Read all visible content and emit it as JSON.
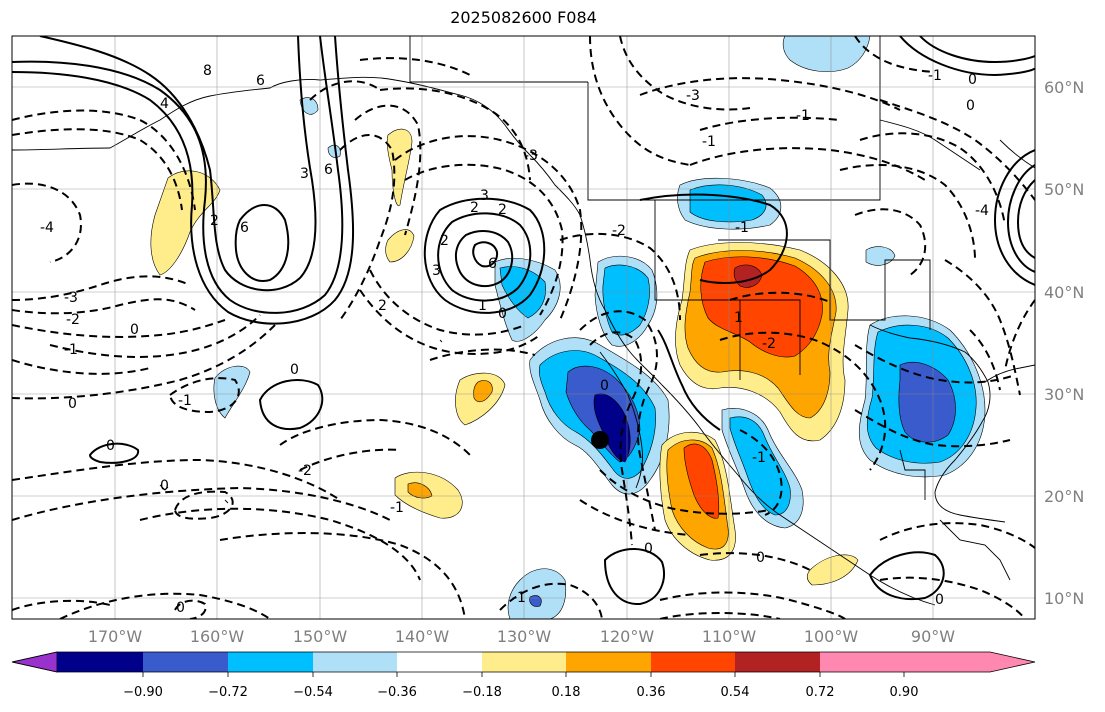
{
  "title": "2025082600 F084",
  "longitude_labels": [
    "170°W",
    "160°W",
    "150°W",
    "140°W",
    "130°W",
    "120°W",
    "110°W",
    "100°W",
    "90°W"
  ],
  "latitude_labels": [
    "60°N",
    "50°N",
    "40°N",
    "30°N",
    "20°N",
    "10°N"
  ],
  "colorbar": {
    "colors": [
      "#9932cc",
      "#00008b",
      "#3a5bcc",
      "#00bfff",
      "#b0e0f8",
      "#ffffff",
      "#ffec8b",
      "#ffa500",
      "#ff4500",
      "#b22222",
      "#ff88b0"
    ],
    "tick_labels": [
      "−0.90",
      "−0.72",
      "−0.54",
      "−0.36",
      "−0.18",
      "0.18",
      "0.36",
      "0.54",
      "0.72",
      "0.90"
    ]
  },
  "contour_labels": [
    "8",
    "6",
    "4",
    "3",
    "2",
    "6",
    "6",
    "3",
    "2",
    "2",
    "2",
    "6",
    "3",
    "2",
    "1",
    "0",
    "-3",
    "-2",
    "-1",
    "0",
    "-4",
    "-1",
    "0",
    "0",
    "0",
    "0",
    "-2",
    "-1",
    "-3",
    "-1",
    "-1",
    "-2",
    "-4",
    "-3",
    "-1",
    "0",
    "-1",
    "0",
    "-2",
    "0",
    "0",
    "-1",
    "-1",
    "0",
    "1",
    "0",
    "0"
  ]
}
